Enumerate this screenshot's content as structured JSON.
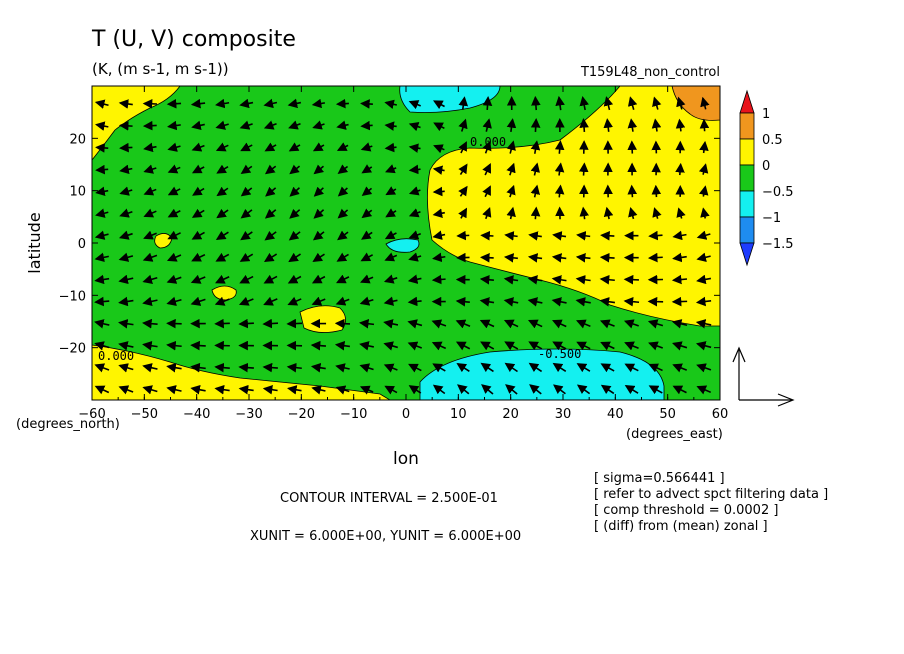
{
  "chart_data": {
    "type": "heatmap",
    "title": "T (U, V) composite",
    "subtitle": "(K, (m s-1, m s-1))",
    "run_label": "T159L48_non_control",
    "xlabel": "lon",
    "ylabel": "latitude",
    "x_unit_label": "(degrees_east)",
    "y_unit_label": "(degrees_north)",
    "xlim": [
      -60,
      60
    ],
    "ylim": [
      -30,
      30
    ],
    "x_ticks": [
      -60,
      -50,
      -40,
      -30,
      -20,
      -10,
      0,
      10,
      20,
      30,
      40,
      50,
      60
    ],
    "y_ticks": [
      -20,
      -10,
      0,
      10,
      20
    ],
    "colorbar": {
      "levels": [
        -1.5,
        -1,
        -0.5,
        0,
        0.5,
        1
      ],
      "labels": [
        "1",
        "0.5",
        "0",
        "-0.5",
        "-1",
        "-1.5"
      ],
      "colors": [
        "#e8141c",
        "#f0961e",
        "#fff500",
        "#19c819",
        "#14f0f0",
        "#1e8cf0",
        "#1e3cff"
      ]
    },
    "contour_labels": [
      "0.000",
      "0.000",
      "-0.500"
    ],
    "footer": {
      "contour_interval": "CONTOUR INTERVAL = 2.500E-01",
      "units": "XUNIT = 6.000E+00, YUNIT = 6.000E+00"
    },
    "notes": [
      "[ sigma=0.566441 ]",
      "[ refer to advect spct filtering data ]",
      "[ comp threshold = 0.0002 ]",
      "[ (diff) from (mean) zonal ]"
    ],
    "grid": false
  }
}
